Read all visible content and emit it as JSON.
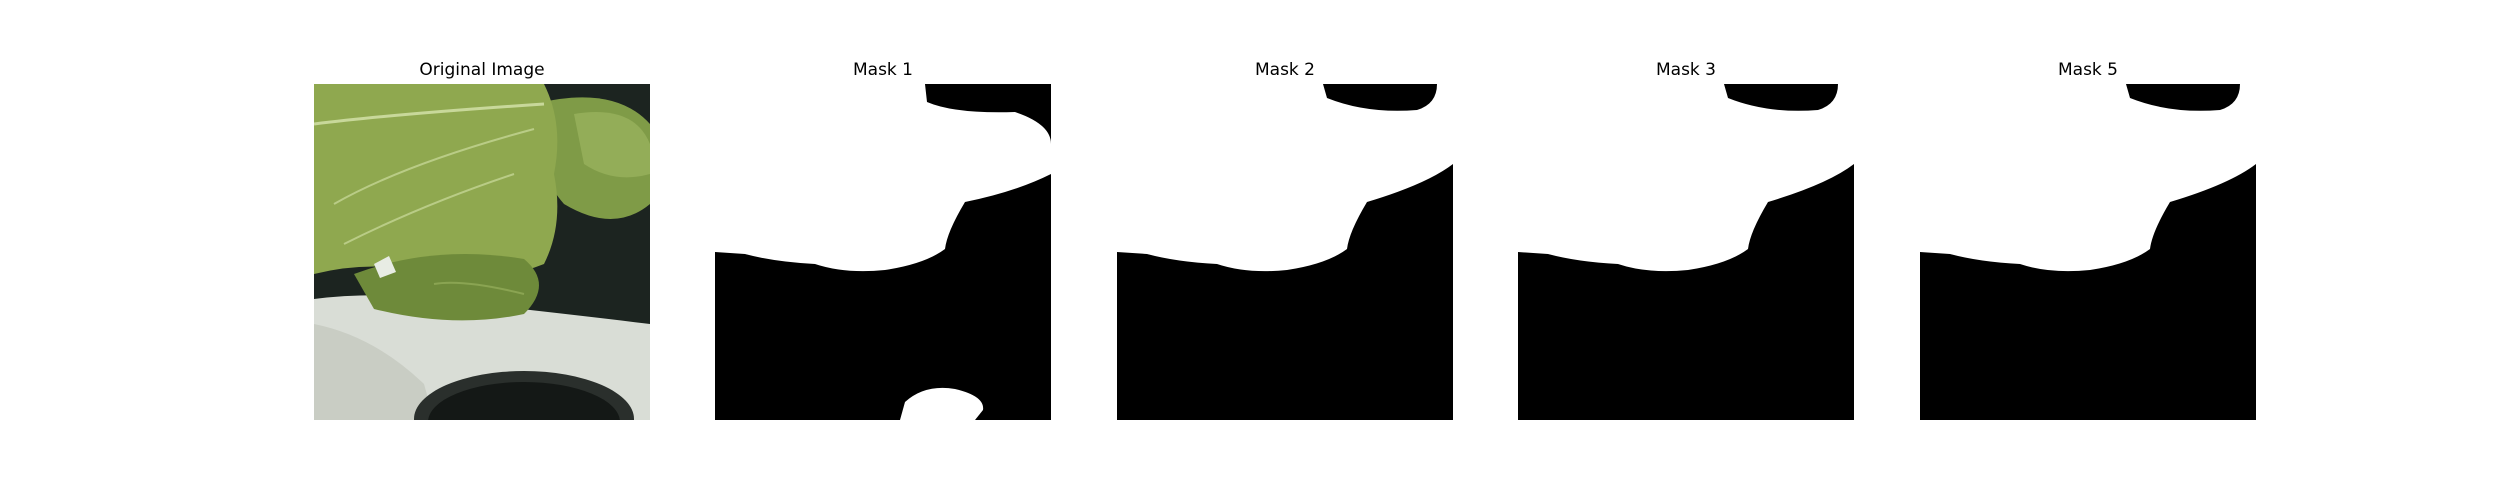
{
  "panels": [
    {
      "title": "Original Image",
      "kind": "photo"
    },
    {
      "title": "Mask 1",
      "kind": "mask"
    },
    {
      "title": "Mask 2",
      "kind": "mask"
    },
    {
      "title": "Mask 3",
      "kind": "mask"
    },
    {
      "title": "Mask 5",
      "kind": "mask"
    }
  ],
  "colors": {
    "mask_foreground": "#ffffff",
    "mask_background": "#000000",
    "leaf_green": "#8fa84f",
    "leaf_dark": "#6e8a3a",
    "pot_white": "#d9ddd6",
    "shadow_dark": "#1c2420"
  }
}
